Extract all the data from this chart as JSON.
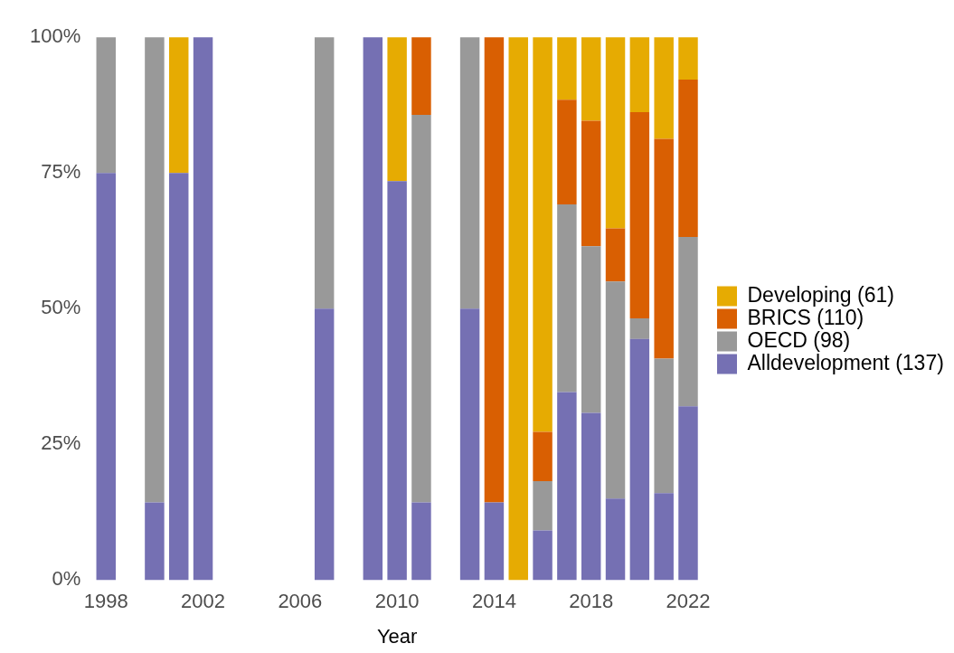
{
  "chart_data": {
    "type": "bar",
    "stacked": true,
    "xlabel": "Year",
    "x": [
      1998,
      2000,
      2001,
      2002,
      2007,
      2009,
      2010,
      2011,
      2013,
      2014,
      2015,
      2016,
      2017,
      2018,
      2019,
      2020,
      2021,
      2022
    ],
    "series": [
      {
        "name": "Alldevelopment (137)",
        "color": "#7570b3",
        "values": [
          75,
          14.3,
          75,
          100,
          50,
          100,
          73.5,
          14.3,
          50,
          14.3,
          null,
          9.1,
          34.6,
          30.8,
          15,
          44.4,
          16,
          32
        ]
      },
      {
        "name": "OECD (98)",
        "color": "#999999",
        "values": [
          25,
          85.7,
          null,
          null,
          50,
          null,
          null,
          71.4,
          50,
          null,
          null,
          9.1,
          34.6,
          30.7,
          40,
          3.8,
          24.8,
          31.2
        ]
      },
      {
        "name": "BRICS (110)",
        "color": "#d95f02",
        "values": [
          null,
          null,
          null,
          null,
          null,
          null,
          null,
          14.3,
          null,
          85.7,
          null,
          9.1,
          19.3,
          23.1,
          9.8,
          38,
          40.5,
          29
        ]
      },
      {
        "name": "Developing (61)",
        "color": "#e6ab02",
        "values": [
          null,
          null,
          25,
          null,
          null,
          null,
          26.5,
          null,
          null,
          null,
          100,
          72.7,
          11.5,
          15.4,
          35.2,
          13.8,
          18.7,
          7.8
        ]
      }
    ],
    "xlim": [
      1998,
      2022
    ],
    "xticks": [
      1998,
      2002,
      2006,
      2010,
      2014,
      2018,
      2022
    ],
    "ylim": [
      0,
      100
    ],
    "yticks": [
      {
        "value": 0,
        "label": "0%"
      },
      {
        "value": 25,
        "label": "25%"
      },
      {
        "value": 50,
        "label": "50%"
      },
      {
        "value": 75,
        "label": "75%"
      },
      {
        "value": 100,
        "label": "100%"
      }
    ],
    "grid": false,
    "legend": "right"
  }
}
